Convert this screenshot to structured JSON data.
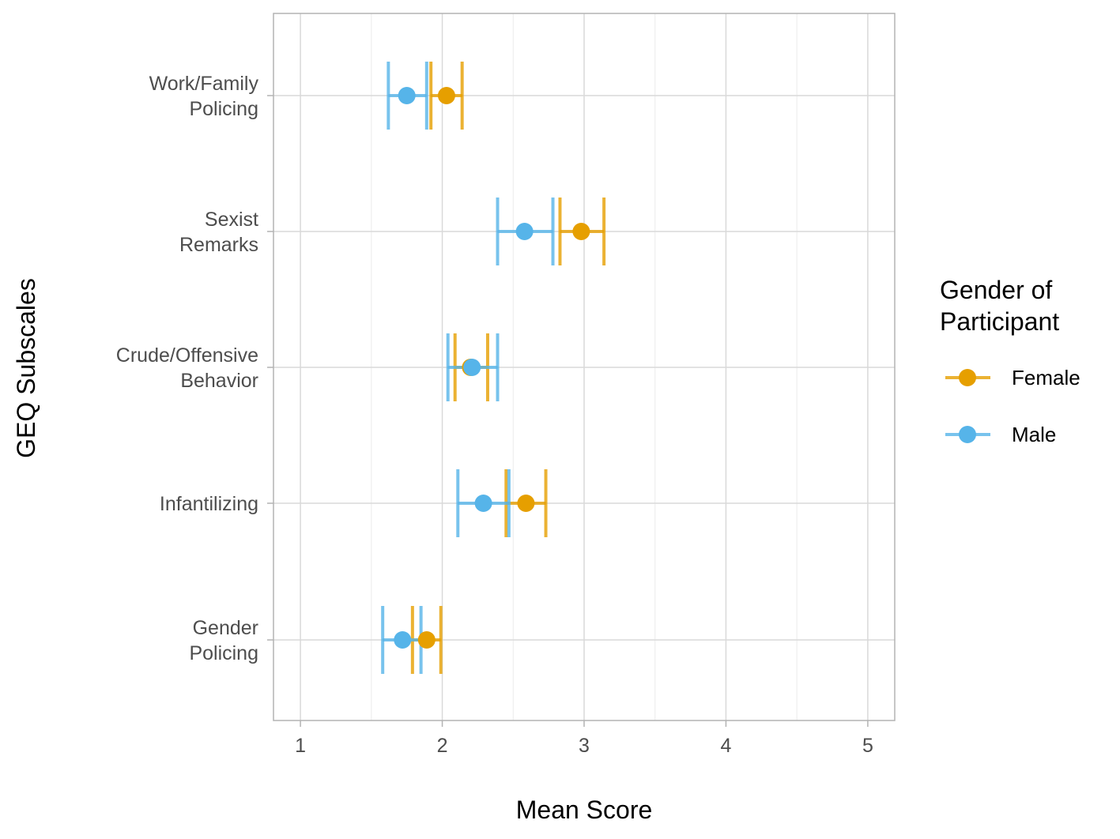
{
  "chart_data": {
    "type": "scatter",
    "orientation": "horizontal",
    "xlabel": "Mean Score",
    "ylabel": "GEQ Subscales",
    "xlim": [
      0.81,
      5.19
    ],
    "x_ticks": [
      "1",
      "2",
      "3",
      "4",
      "5"
    ],
    "grid": true,
    "categories": [
      [
        "Work/Family",
        "Policing"
      ],
      [
        "Sexist",
        "Remarks"
      ],
      [
        "Crude/Offensive",
        "Behavior"
      ],
      [
        "Infantilizing"
      ],
      [
        "Gender",
        "Policing"
      ]
    ],
    "legend": {
      "title": [
        "Gender of",
        "Participant"
      ],
      "position": "right"
    },
    "series": [
      {
        "name": "Female",
        "color": "#E69F00",
        "values": [
          2.03,
          2.98,
          2.2,
          2.59,
          1.89
        ],
        "ci_low": [
          1.92,
          2.83,
          2.09,
          2.45,
          1.79
        ],
        "ci_high": [
          2.14,
          3.14,
          2.32,
          2.73,
          1.99
        ]
      },
      {
        "name": "Male",
        "color": "#56B4E9",
        "values": [
          1.75,
          2.58,
          2.21,
          2.29,
          1.72
        ],
        "ci_low": [
          1.62,
          2.39,
          2.04,
          2.11,
          1.58
        ],
        "ci_high": [
          1.89,
          2.78,
          2.39,
          2.47,
          1.85
        ]
      }
    ]
  }
}
